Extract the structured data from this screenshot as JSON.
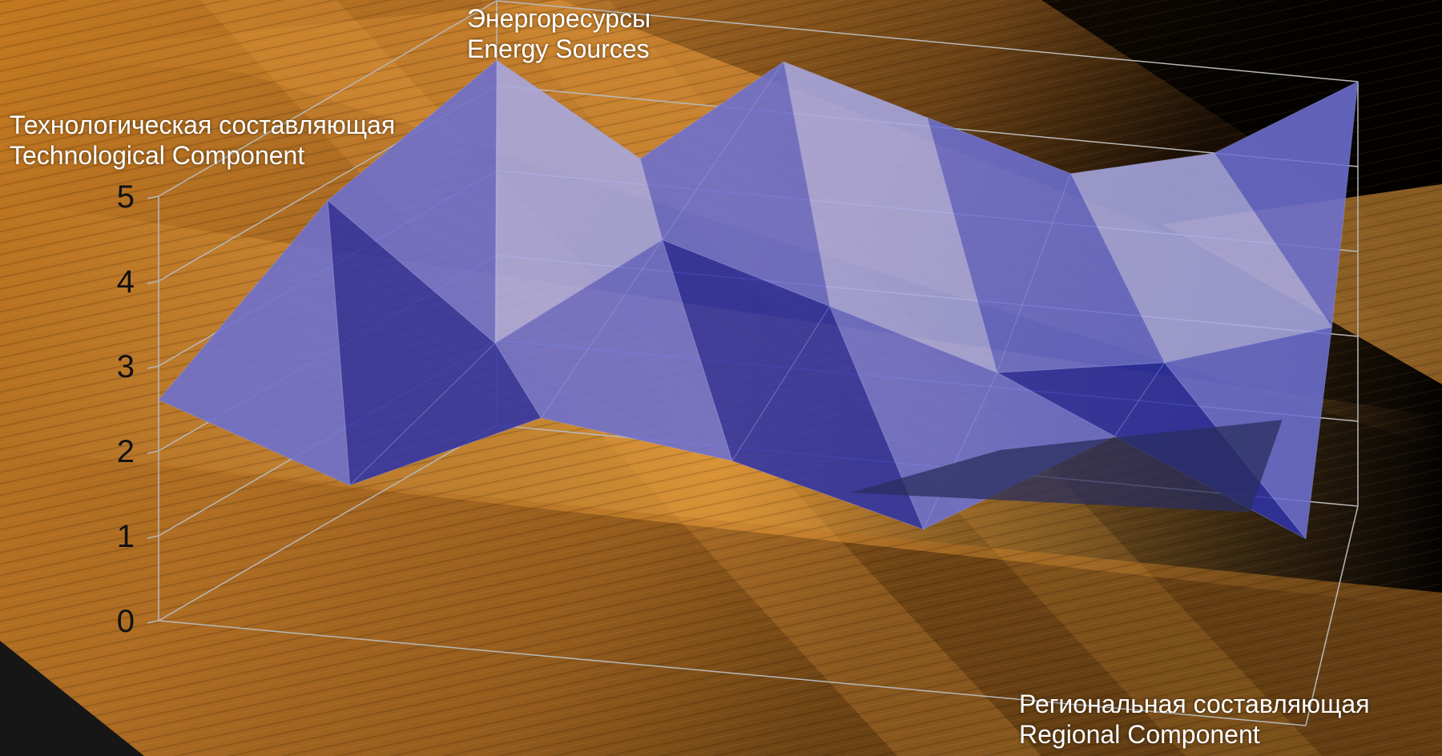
{
  "chart_data": {
    "type": "surface",
    "z_axis": {
      "label_ru": "Технологическая составляющая",
      "label_en": "Technological Component",
      "min": 0,
      "max": 5,
      "ticks": [
        "0",
        "1",
        "2",
        "3",
        "4",
        "5"
      ]
    },
    "x_axis": {
      "label_ru": "Региональная составляющая",
      "label_en": "Regional Component"
    },
    "y_axis": {
      "label_ru": "Энергоресурсы",
      "label_en": "Energy Sources"
    },
    "grid": true,
    "surface_color": "#6f72d6",
    "grid_rows": [
      [
        4.3,
        3.3,
        4.6,
        4.1,
        3.6,
        4.0,
        5.0
      ],
      [
        3.8,
        2.3,
        3.7,
        3.1,
        2.5,
        2.8,
        3.4
      ],
      [
        2.6,
        1.8,
        2.8,
        2.5,
        1.9,
        3.2,
        2.2
      ]
    ],
    "colors": {
      "background_glow": "#f0a030",
      "background_dark": "#0b0703",
      "frame": "#b8b8b8",
      "surface_light": "#a7a9e3",
      "surface_mid": "#6c70d2",
      "surface_dark": "#2f33a6",
      "surface_shadow": "#2a2d5e"
    }
  }
}
